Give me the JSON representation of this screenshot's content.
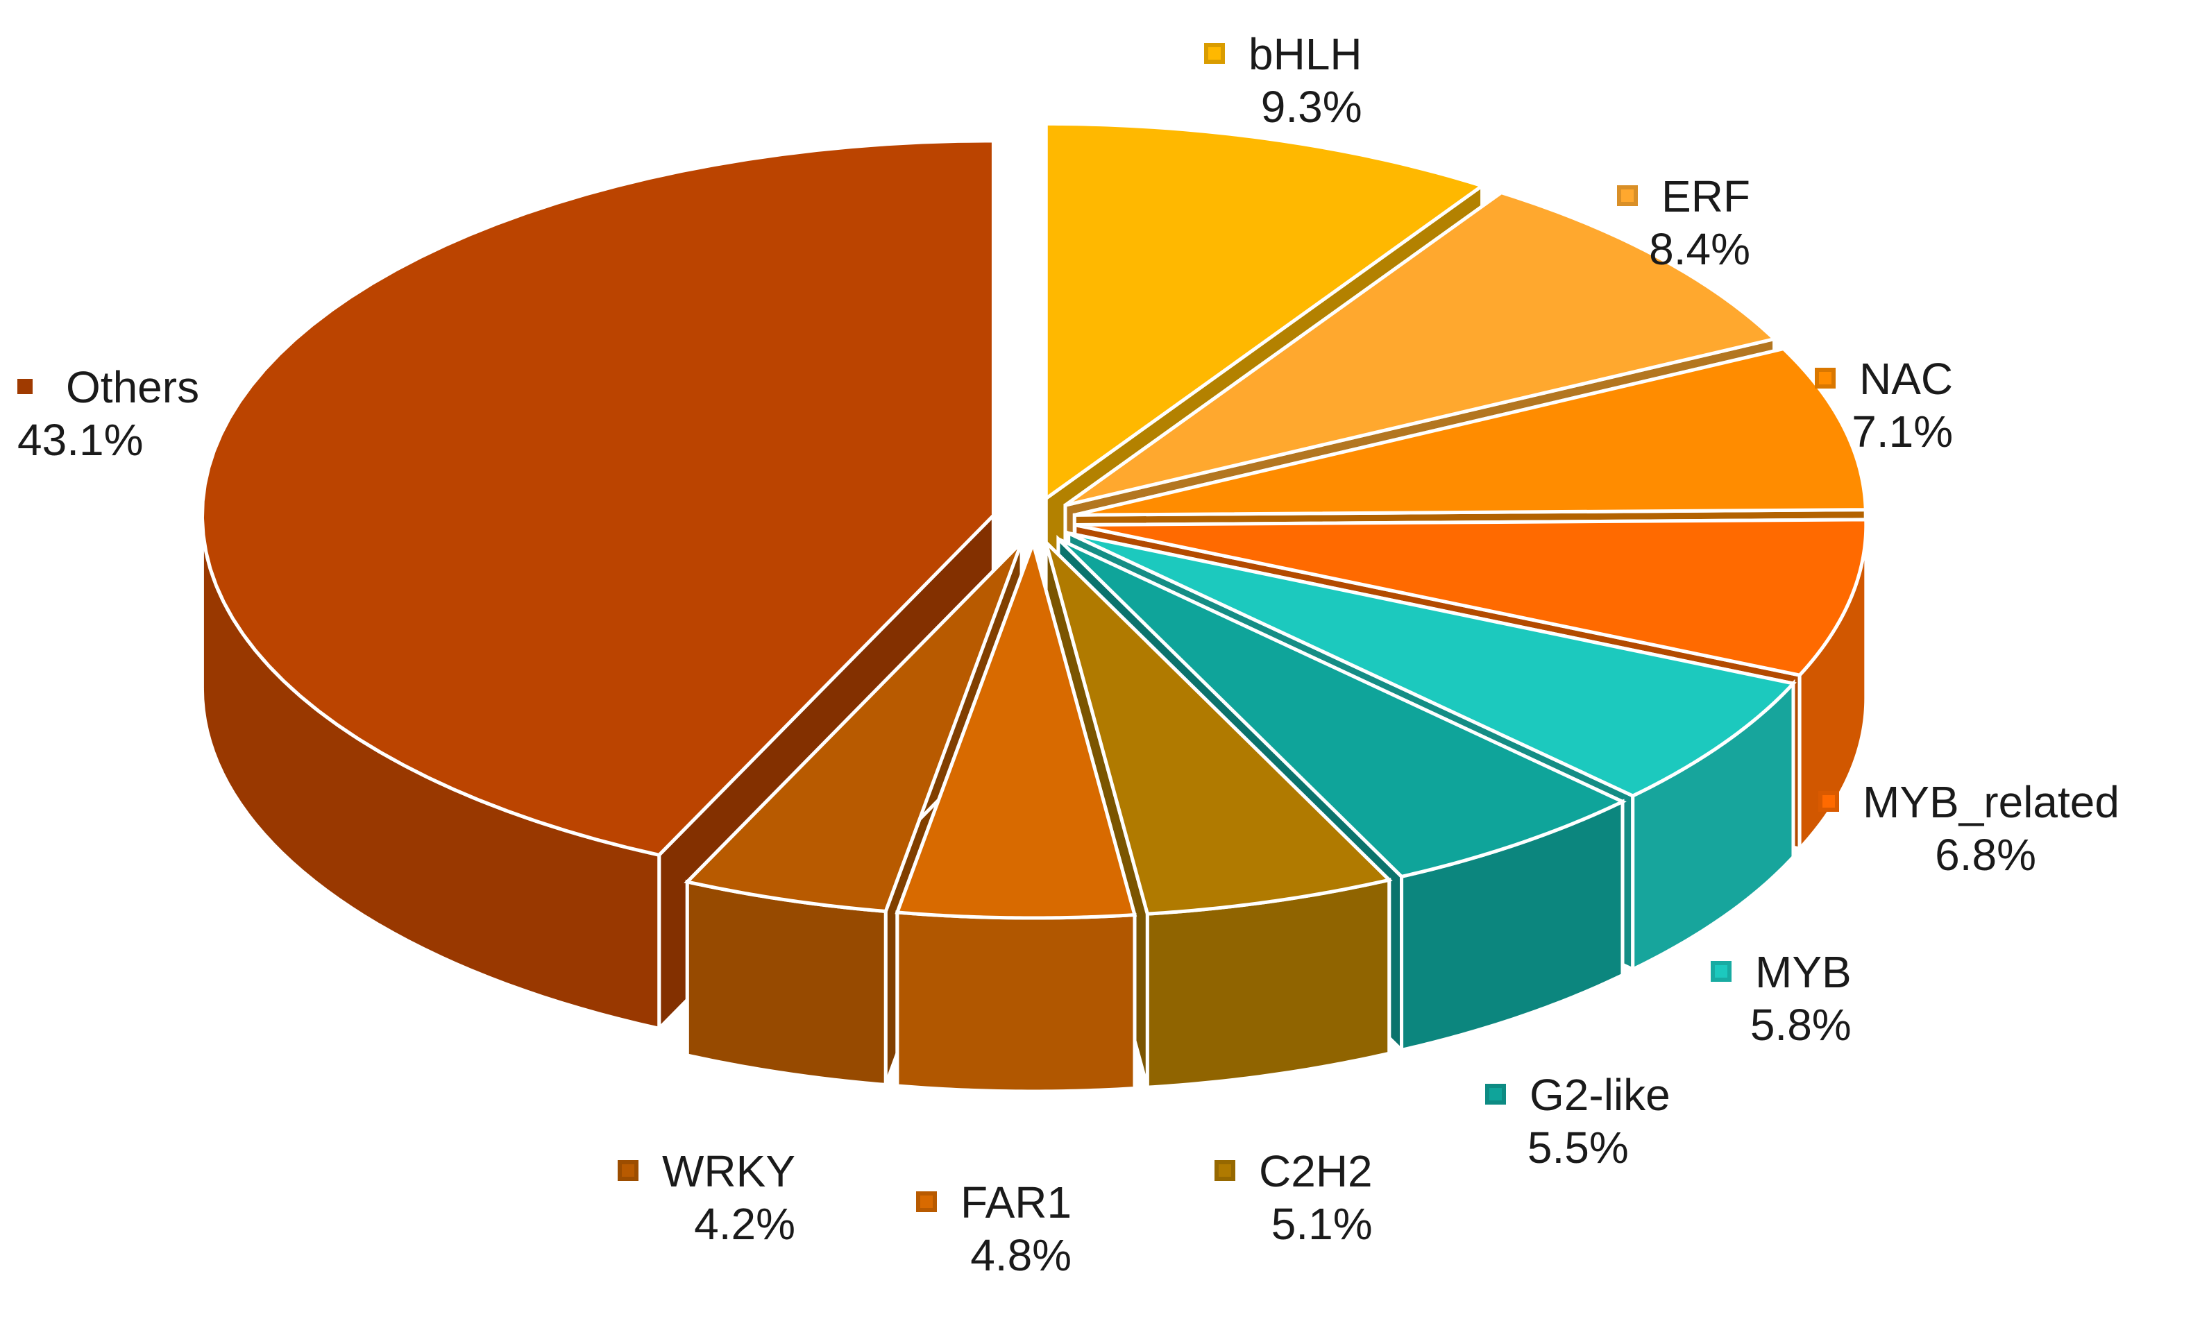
{
  "chart_data": {
    "type": "pie",
    "style": "3d-exploded",
    "title": "",
    "legend_placement": "around-chart",
    "slices": [
      {
        "label": "bHLH",
        "value": 9.3,
        "value_label": "9.3%",
        "color": "#FFB800"
      },
      {
        "label": "ERF",
        "value": 8.4,
        "value_label": "8.4%",
        "color": "#FFA82E"
      },
      {
        "label": "NAC",
        "value": 7.1,
        "value_label": "7.1%",
        "color": "#FF8C00"
      },
      {
        "label": "MYB_related",
        "value": 6.8,
        "value_label": "6.8%",
        "color": "#FF6A00"
      },
      {
        "label": "MYB",
        "value": 5.8,
        "value_label": "5.8%",
        "color": "#1CC9BE"
      },
      {
        "label": "G2-like",
        "value": 5.5,
        "value_label": "5.5%",
        "color": "#0FA49A"
      },
      {
        "label": "C2H2",
        "value": 5.1,
        "value_label": "5.1%",
        "color": "#B07A00"
      },
      {
        "label": "FAR1",
        "value": 4.8,
        "value_label": "4.8%",
        "color": "#D86A00"
      },
      {
        "label": "WRKY",
        "value": 4.2,
        "value_label": "4.2%",
        "color": "#B85A00"
      },
      {
        "label": "Others",
        "value": 43.1,
        "value_label": "43.1%",
        "color": "#BB4400"
      }
    ]
  }
}
